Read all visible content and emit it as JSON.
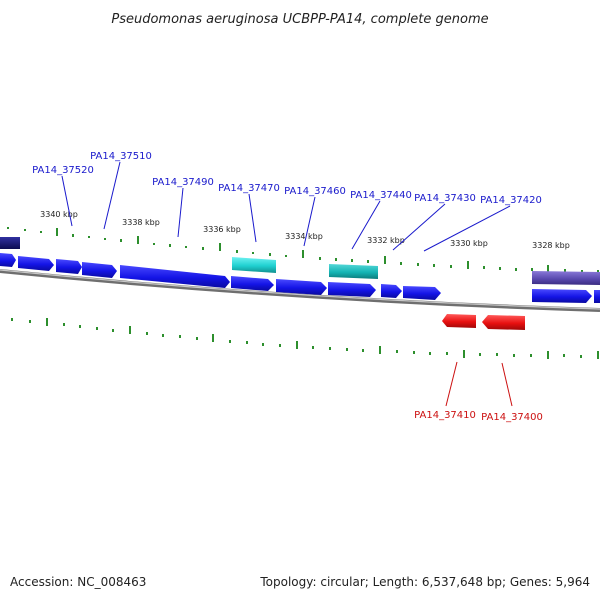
{
  "title": "Pseudomonas aeruginosa UCBPP-PA14, complete genome",
  "footer": {
    "accession": "Accession: NC_008463",
    "summary": "Topology: circular; Length: 6,537,648 bp; Genes: 5,964"
  },
  "colors": {
    "forward_gene": "#1a1aee",
    "highlight_gene": "#22d4d4",
    "reverse_gene": "#e81010",
    "dark_gene": "#101070",
    "purple_gene": "#5a4ab0",
    "tick": "#2d8f2d",
    "backbone": "#8a8a8a",
    "forward_label": "#1a1acc",
    "reverse_label": "#cc1010"
  },
  "scale_labels": [
    "3340 kbp",
    "3338 kbp",
    "3336 kbp",
    "3334 kbp",
    "3332 kbp",
    "3330 kbp",
    "3328 kbp"
  ],
  "forward_labels": [
    "PA14_37520",
    "PA14_37510",
    "PA14_37490",
    "PA14_37470",
    "PA14_37460",
    "PA14_37440",
    "PA14_37430",
    "PA14_37420"
  ],
  "reverse_labels": [
    "PA14_37410",
    "PA14_37400"
  ]
}
